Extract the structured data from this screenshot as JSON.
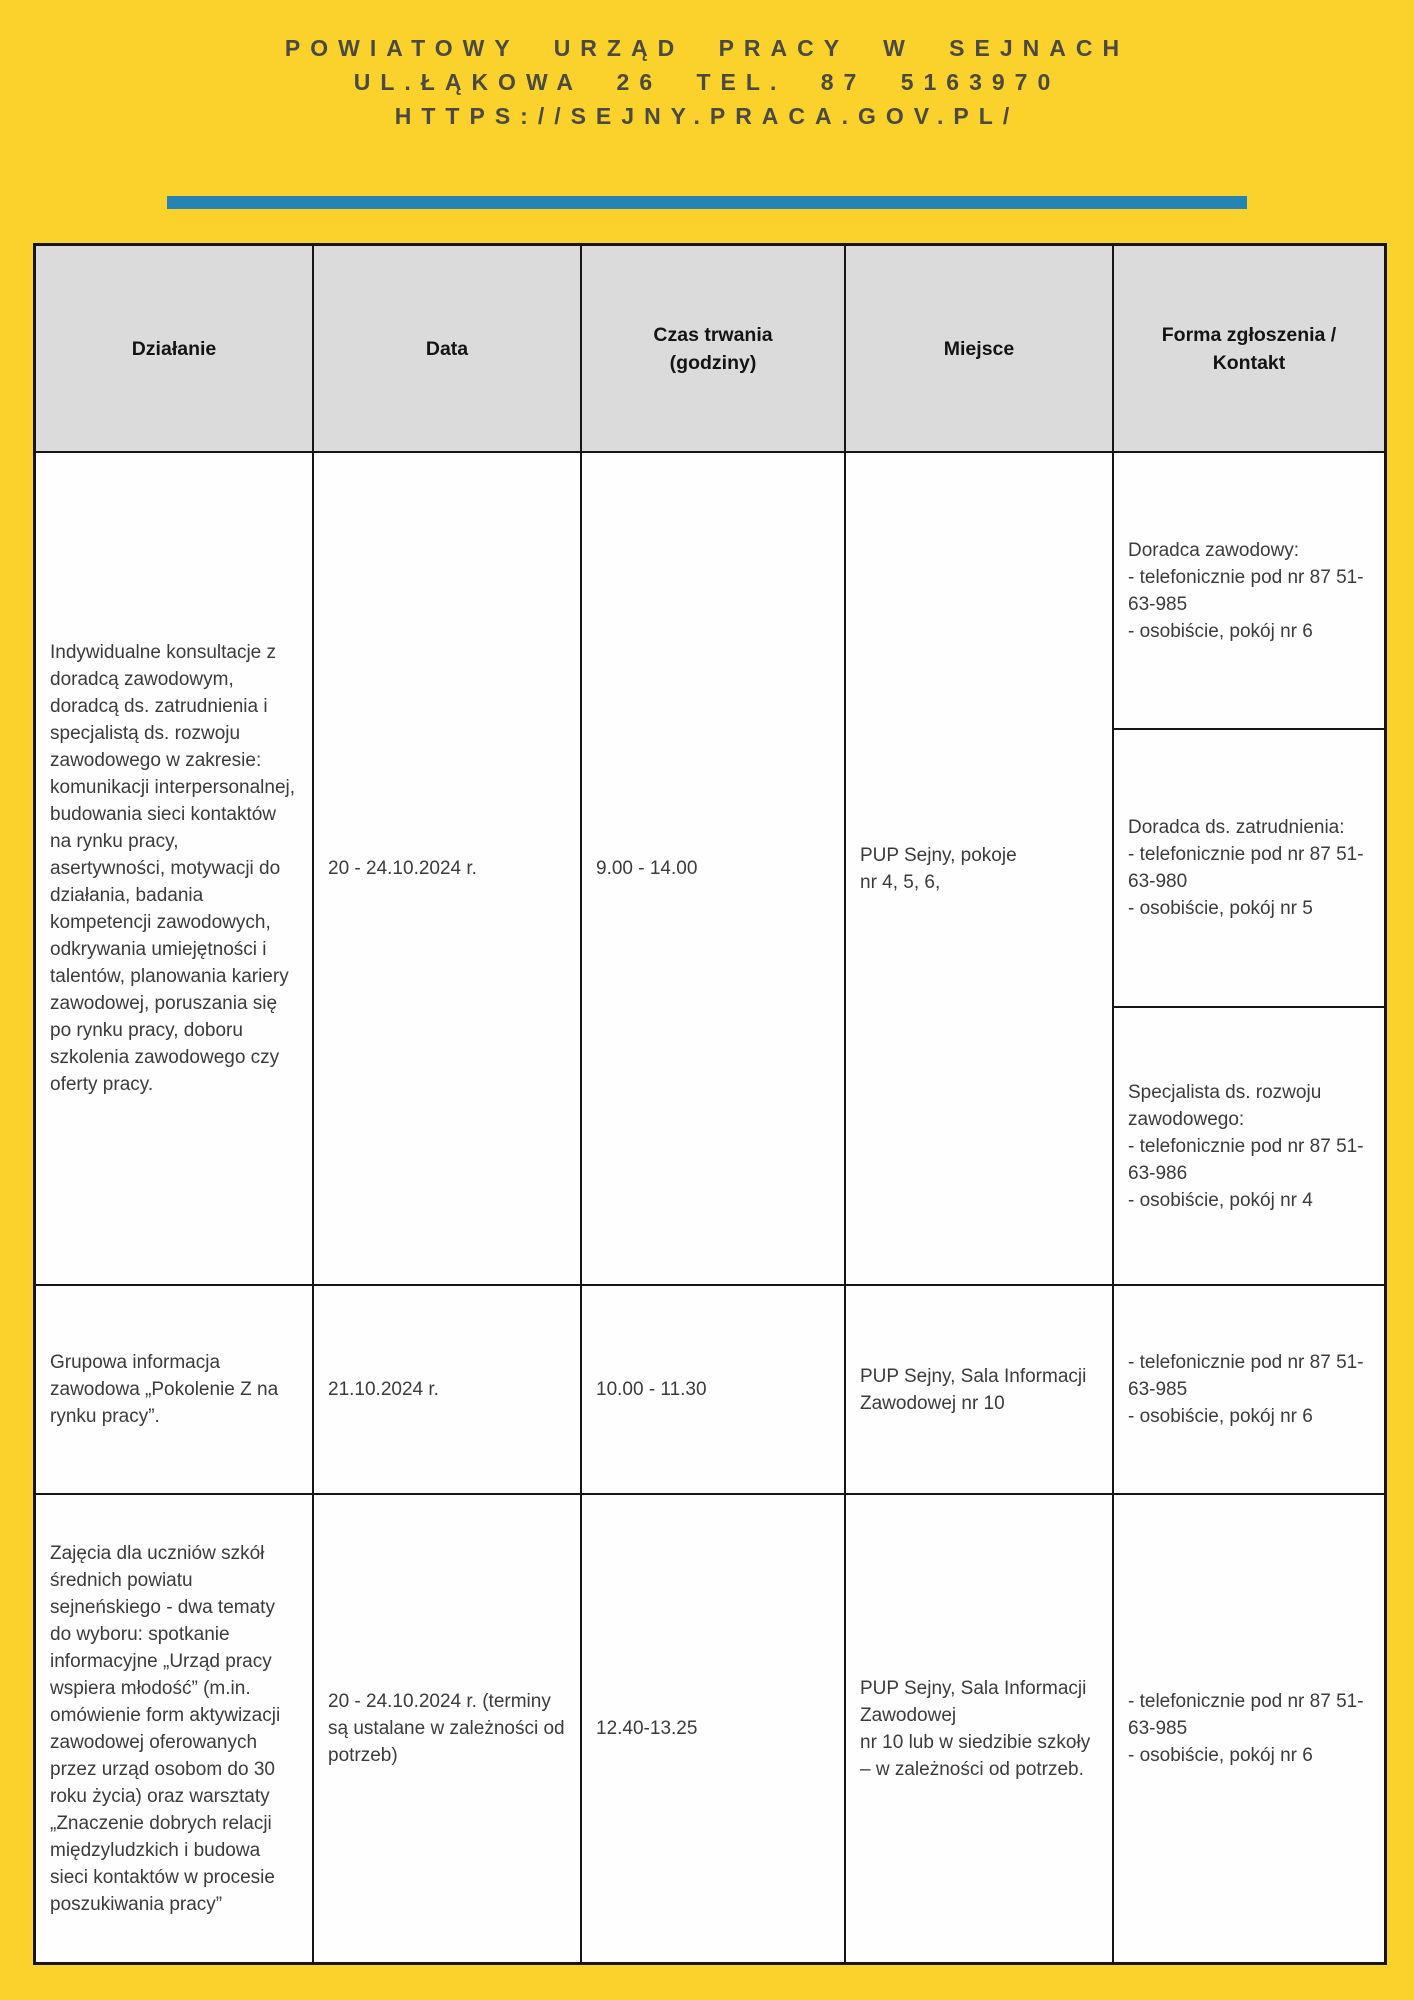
{
  "masthead": {
    "line1": "POWIATOWY URZĄD PRACY W SEJNACH",
    "line2": "UL.ŁĄKOWA 26 TEL. 87 5163970",
    "line3": "HTTPS://SEJNY.PRACA.GOV.PL/"
  },
  "colors": {
    "page_background": "#FBD12B",
    "divider_bar": "#2484B4",
    "table_border": "#161616",
    "header_cell_background": "#DBDBDB",
    "body_text": "#3B3B3B",
    "masthead_text": "#4B4A41"
  },
  "table": {
    "headers": [
      "Działanie",
      "Data",
      "Czas trwania\n(godziny)",
      "Miejsce",
      "Forma zgłoszenia /\nKontakt"
    ],
    "rows": [
      {
        "dzialanie": "Indywidualne konsultacje z doradcą zawodowym, doradcą ds. zatrudnienia i specjalistą ds. rozwoju zawodowego w zakresie: komunikacji interpersonalnej, budowania sieci kontaktów na rynku pracy, asertywności, motywacji do działania, badania kompetencji zawodowych, odkrywania umiejętności i talentów, planowania kariery zawodowej, poruszania się po rynku pracy, doboru szkolenia zawodowego czy oferty pracy.",
        "data": "20 - 24.10.2024 r.",
        "czas": "9.00 - 14.00",
        "miejsce": "PUP Sejny, pokoje\nnr 4, 5, 6,",
        "kontakt": [
          "Doradca zawodowy:\n- telefonicznie pod nr 87 51-63-985\n- osobiście, pokój nr 6",
          "Doradca ds. zatrudnienia:\n- telefonicznie pod nr 87 51-63-980\n- osobiście, pokój nr 5",
          "Specjalista ds. rozwoju zawodowego:\n- telefonicznie pod nr 87 51-63-986\n- osobiście, pokój nr 4"
        ]
      },
      {
        "dzialanie": "Grupowa informacja zawodowa „Pokolenie Z na rynku pracy”.",
        "data": "21.10.2024 r.",
        "czas": "10.00 - 11.30",
        "miejsce": "PUP Sejny, Sala Informacji Zawodowej nr 10",
        "kontakt": "- telefonicznie pod nr 87 51-63-985\n- osobiście, pokój nr 6"
      },
      {
        "dzialanie": "Zajęcia dla uczniów szkół średnich powiatu sejneńskiego - dwa tematy do wyboru: spotkanie informacyjne „Urząd pracy wspiera młodość” (m.in. omówienie form aktywizacji zawodowej oferowanych przez urząd osobom do 30 roku życia) oraz warsztaty „Znaczenie dobrych relacji międzyludzkich i budowa sieci kontaktów w procesie poszukiwania pracy”",
        "data": "20 - 24.10.2024 r. (terminy są ustalane w zależności od potrzeb)",
        "czas": "12.40-13.25",
        "miejsce": "PUP Sejny, Sala Informacji Zawodowej\nnr 10 lub w siedzibie szkoły – w zależności od potrzeb.",
        "kontakt": "- telefonicznie pod nr 87 51-63-985\n- osobiście, pokój nr 6"
      }
    ]
  }
}
